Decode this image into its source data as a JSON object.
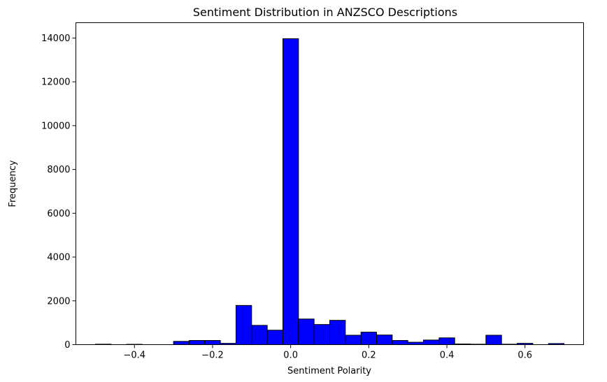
{
  "chart_data": {
    "type": "bar",
    "title": "Sentiment Distribution in ANZSCO Descriptions",
    "xlabel": "Sentiment Polarity",
    "ylabel": "Frequency",
    "xlim": [
      -0.55,
      0.75
    ],
    "ylim": [
      0,
      14700
    ],
    "x_ticks": [
      -0.4,
      -0.2,
      0.0,
      0.2,
      0.4,
      0.6
    ],
    "x_tick_labels": [
      "−0.4",
      "−0.2",
      "0.0",
      "0.2",
      "0.4",
      "0.6"
    ],
    "y_ticks": [
      0,
      2000,
      4000,
      6000,
      8000,
      10000,
      12000,
      14000
    ],
    "y_tick_labels": [
      "0",
      "2000",
      "4000",
      "6000",
      "8000",
      "10000",
      "12000",
      "14000"
    ],
    "bin_start": -0.5,
    "bin_width": 0.04,
    "values": [
      20,
      0,
      15,
      0,
      0,
      150,
      190,
      190,
      60,
      1790,
      880,
      660,
      13970,
      1170,
      920,
      1110,
      430,
      570,
      440,
      190,
      110,
      210,
      310,
      30,
      20,
      430,
      20,
      60,
      0,
      50
    ],
    "bar_color": "#0000ff",
    "edge_color": "#000000",
    "grid": false
  }
}
